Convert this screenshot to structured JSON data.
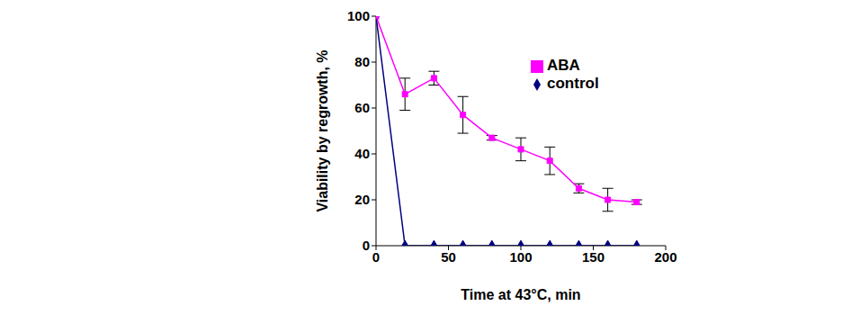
{
  "chart_data": {
    "type": "line",
    "x_label": "Time at 43°C, min",
    "y_label": "Viability by regrowth, %",
    "x": [
      0,
      20,
      40,
      60,
      80,
      100,
      120,
      140,
      160,
      180
    ],
    "series": [
      {
        "name": "control",
        "color": "#000080",
        "marker": "diamond",
        "values": [
          100,
          0,
          0,
          0,
          0,
          0,
          0,
          0,
          0,
          0
        ]
      },
      {
        "name": "ABA",
        "color": "#ff00ff",
        "marker": "square",
        "values": [
          100,
          66,
          73,
          57,
          47,
          42,
          37,
          25,
          20,
          19
        ],
        "errors": [
          0,
          7,
          3,
          8,
          1,
          5,
          6,
          2,
          5,
          1
        ]
      }
    ],
    "xlim": [
      0,
      200
    ],
    "ylim": [
      0,
      100
    ],
    "xticks": [
      0,
      50,
      100,
      150,
      200
    ],
    "yticks": [
      0,
      20,
      40,
      60,
      80,
      100
    ],
    "grid": false,
    "legend": "upper right"
  }
}
